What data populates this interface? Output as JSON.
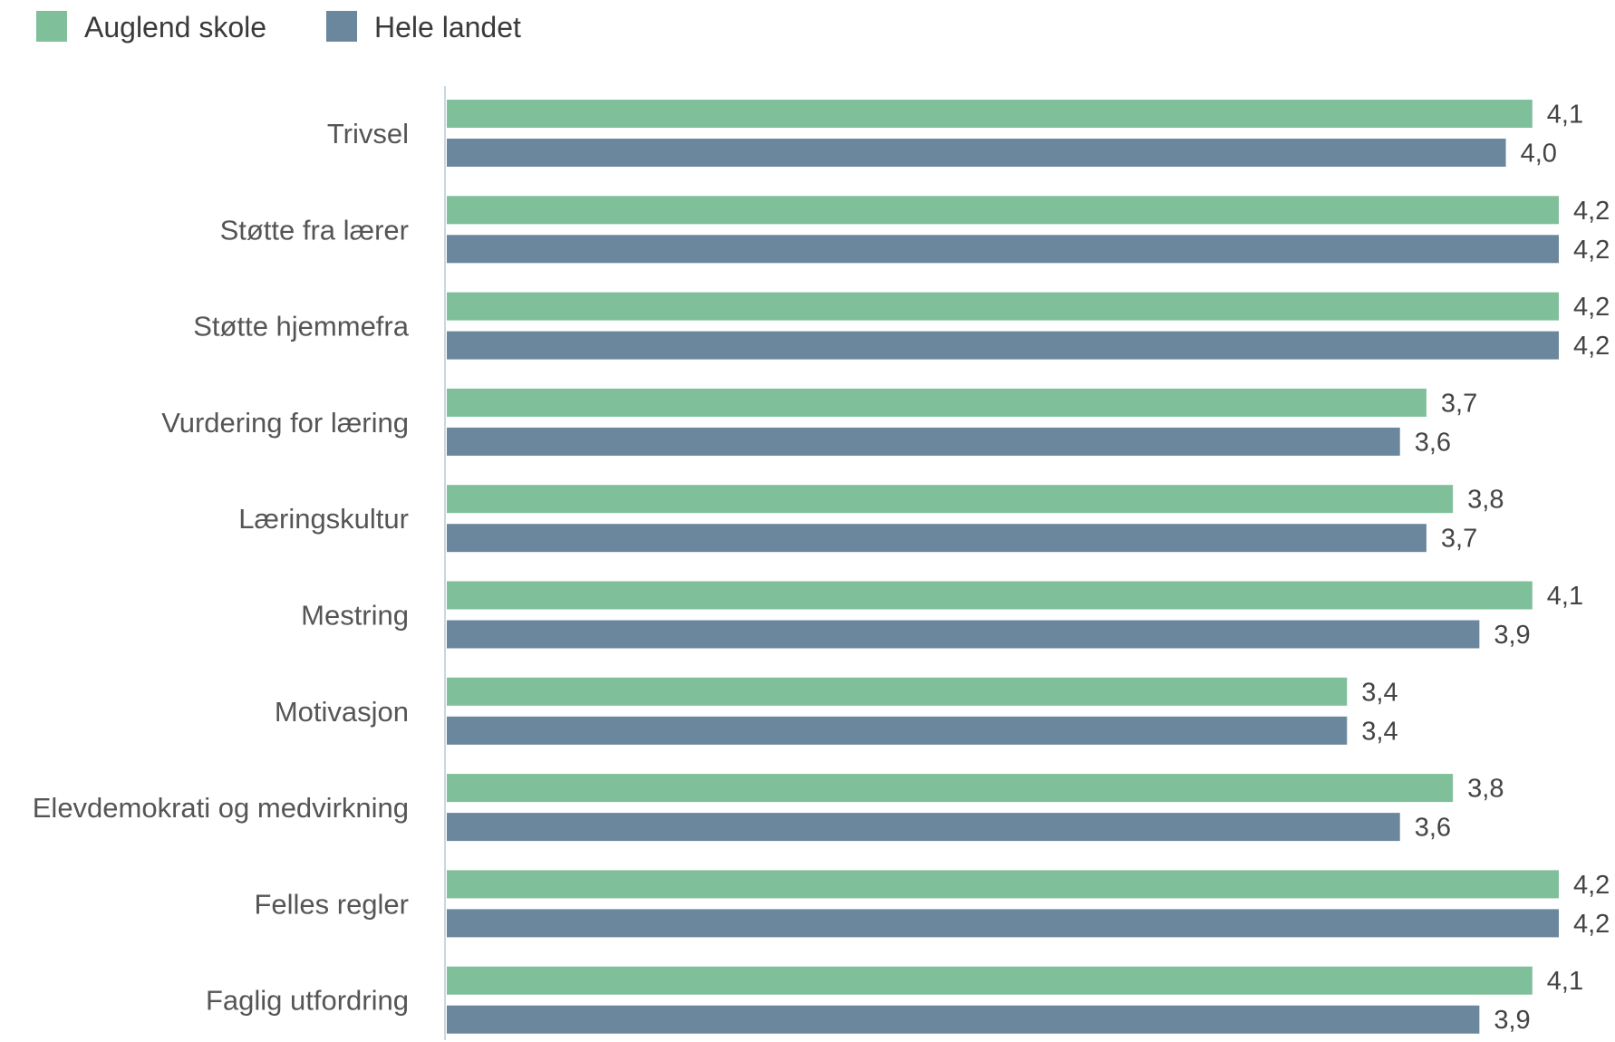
{
  "colors": {
    "series_1": "#7fbf9a",
    "series_2": "#6b879d",
    "axis": "#c9d7e3"
  },
  "chart_data": {
    "type": "bar",
    "orientation": "horizontal",
    "categories": [
      "Trivsel",
      "Støtte fra lærer",
      "Støtte hjemmefra",
      "Vurdering for læring",
      "Læringskultur",
      "Mestring",
      "Motivasjon",
      "Elevdemokrati og medvirkning",
      "Felles regler",
      "Faglig utfordring"
    ],
    "series": [
      {
        "name": "Auglend skole",
        "values": [
          4.1,
          4.2,
          4.2,
          3.7,
          3.8,
          4.1,
          3.4,
          3.8,
          4.2,
          4.1
        ],
        "labels": [
          "4,1",
          "4,2",
          "4,2",
          "3,7",
          "3,8",
          "4,1",
          "3,4",
          "3,8",
          "4,2",
          "4,1"
        ]
      },
      {
        "name": "Hele landet",
        "values": [
          4.0,
          4.2,
          4.2,
          3.6,
          3.7,
          3.9,
          3.4,
          3.6,
          4.2,
          3.9
        ],
        "labels": [
          "4,0",
          "4,2",
          "4,2",
          "3,6",
          "3,7",
          "3,9",
          "3,4",
          "3,6",
          "4,2",
          "3,9"
        ]
      }
    ],
    "xlim": [
      0,
      4.2
    ],
    "grid": false,
    "legend_position": "top-left"
  }
}
